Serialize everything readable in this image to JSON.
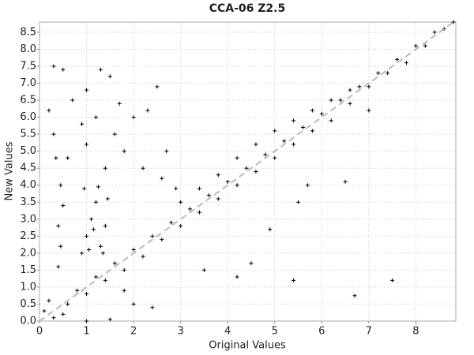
{
  "chart_data": {
    "type": "scatter",
    "title": "CCA-06 Z2.5",
    "x_label": "Original Values",
    "y_label": "New Values",
    "color": "#000000",
    "grid": true,
    "reference_line": "dashed",
    "xlim": [
      0,
      8.85
    ],
    "ylim": [
      0,
      8.8
    ],
    "xticks": [
      0,
      1,
      2,
      3,
      4,
      5,
      6,
      7,
      8
    ],
    "yticks": [
      {
        "value": 0,
        "label": "0.0"
      },
      0.5,
      {
        "value": 1,
        "label": "1.0"
      },
      1.5,
      {
        "value": 2,
        "label": "2.0"
      },
      2.5,
      {
        "value": 3,
        "label": "3.0"
      },
      3.5,
      {
        "value": 4,
        "label": "4.0"
      },
      4.5,
      {
        "value": 5,
        "label": "5.0"
      },
      5.5,
      {
        "value": 6,
        "label": "6.0"
      },
      6.5,
      {
        "value": 7,
        "label": "7.0"
      },
      7.5,
      {
        "value": 8,
        "label": "8.0"
      },
      8.5
    ],
    "x": [
      0.1,
      0.3,
      0.2,
      0.5,
      0.6,
      0.8,
      1.0,
      1.2,
      1.4,
      1.6,
      1.8,
      2.0,
      2.2,
      2.4,
      2.6,
      2.8,
      3.0,
      3.2,
      3.4,
      3.6,
      3.8,
      4.0,
      4.2,
      4.4,
      4.6,
      4.8,
      5.0,
      5.2,
      5.4,
      5.6,
      5.8,
      6.0,
      6.2,
      6.4,
      6.6,
      6.8,
      7.0,
      7.2,
      7.4,
      7.6,
      7.8,
      8.0,
      8.2,
      8.4,
      8.6,
      8.8,
      3.0,
      3.4,
      3.8,
      4.2,
      4.6,
      5.0,
      5.4,
      5.8,
      6.2,
      6.6,
      0.9,
      1.0,
      1.1,
      1.2,
      0.95,
      1.3,
      1.4,
      1.45,
      1.05,
      1.25,
      1.35,
      1.15,
      0.4,
      0.45,
      0.4,
      0.5,
      0.45,
      0.3,
      0.35,
      0.3,
      0.5,
      0.7,
      1.0,
      1.3,
      1.5,
      1.2,
      0.9,
      1.6,
      2.0,
      2.3,
      2.5,
      1.8,
      2.2,
      2.6,
      2.9,
      0.6,
      1.4,
      1.0,
      2.7,
      0.2,
      1.7,
      1.0,
      1.5,
      2.0,
      2.4,
      1.8,
      4.5,
      4.2,
      3.5,
      5.4,
      6.7,
      7.5,
      5.5,
      6.5,
      4.9,
      7.0,
      5.7
    ],
    "values": [
      0.3,
      0.1,
      0.6,
      0.2,
      0.5,
      0.9,
      0.8,
      1.3,
      1.2,
      1.7,
      1.5,
      2.1,
      1.9,
      2.5,
      2.4,
      2.9,
      2.8,
      3.3,
      3.2,
      3.7,
      3.6,
      4.1,
      4.0,
      4.5,
      4.4,
      4.9,
      4.8,
      5.3,
      5.2,
      5.7,
      5.6,
      6.1,
      5.9,
      6.5,
      6.4,
      6.9,
      6.9,
      7.3,
      7.3,
      7.7,
      7.6,
      8.1,
      8.1,
      8.5,
      8.6,
      8.8,
      3.5,
      3.9,
      4.3,
      4.8,
      5.2,
      5.6,
      5.9,
      6.2,
      6.5,
      6.8,
      2.0,
      2.5,
      3.0,
      3.5,
      3.9,
      2.2,
      2.8,
      3.6,
      2.1,
      3.95,
      2.0,
      2.7,
      1.6,
      2.2,
      2.8,
      3.4,
      4.0,
      5.5,
      4.8,
      7.5,
      7.4,
      6.5,
      6.8,
      7.4,
      7.2,
      6.0,
      5.8,
      5.5,
      6.0,
      6.2,
      6.9,
      5.0,
      4.5,
      4.2,
      3.9,
      4.8,
      4.5,
      5.2,
      5.0,
      6.2,
      6.4,
      0.0,
      0.05,
      0.5,
      0.4,
      0.9,
      1.7,
      1.3,
      1.5,
      1.2,
      0.75,
      1.2,
      3.5,
      4.1,
      2.7,
      6.2,
      4.0
    ]
  }
}
